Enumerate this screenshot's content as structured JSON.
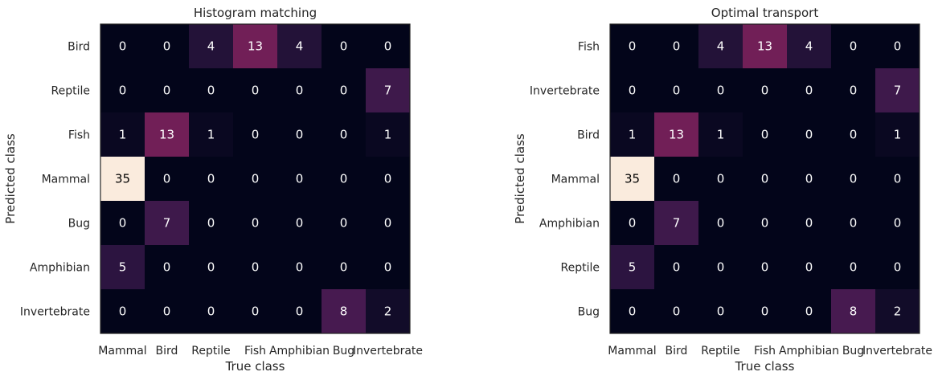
{
  "chart_data": [
    {
      "type": "heatmap",
      "title": "Histogram matching",
      "xlabel": "True class",
      "ylabel": "Predicted class",
      "x_categories": [
        "Mammal",
        "Bird",
        "Reptile",
        "Fish",
        "Amphibian",
        "Bug",
        "Invertebrate"
      ],
      "y_categories": [
        "Bird",
        "Reptile",
        "Fish",
        "Mammal",
        "Bug",
        "Amphibian",
        "Invertebrate"
      ],
      "values": [
        [
          0,
          0,
          4,
          13,
          4,
          0,
          0
        ],
        [
          0,
          0,
          0,
          0,
          0,
          0,
          7
        ],
        [
          1,
          13,
          1,
          0,
          0,
          0,
          1
        ],
        [
          35,
          0,
          0,
          0,
          0,
          0,
          0
        ],
        [
          0,
          7,
          0,
          0,
          0,
          0,
          0
        ],
        [
          5,
          0,
          0,
          0,
          0,
          0,
          0
        ],
        [
          0,
          0,
          0,
          0,
          0,
          8,
          2
        ]
      ],
      "vmin": 0,
      "vmax": 35,
      "colormap": "rocket"
    },
    {
      "type": "heatmap",
      "title": "Optimal transport",
      "xlabel": "True class",
      "ylabel": "Predicted class",
      "x_categories": [
        "Mammal",
        "Bird",
        "Reptile",
        "Fish",
        "Amphibian",
        "Bug",
        "Invertebrate"
      ],
      "y_categories": [
        "Fish",
        "Invertebrate",
        "Bird",
        "Mammal",
        "Amphibian",
        "Reptile",
        "Bug"
      ],
      "values": [
        [
          0,
          0,
          4,
          13,
          4,
          0,
          0
        ],
        [
          0,
          0,
          0,
          0,
          0,
          0,
          7
        ],
        [
          1,
          13,
          1,
          0,
          0,
          0,
          1
        ],
        [
          35,
          0,
          0,
          0,
          0,
          0,
          0
        ],
        [
          0,
          7,
          0,
          0,
          0,
          0,
          0
        ],
        [
          5,
          0,
          0,
          0,
          0,
          0,
          0
        ],
        [
          0,
          0,
          0,
          0,
          0,
          8,
          2
        ]
      ],
      "vmin": 0,
      "vmax": 35,
      "colormap": "rocket"
    }
  ]
}
